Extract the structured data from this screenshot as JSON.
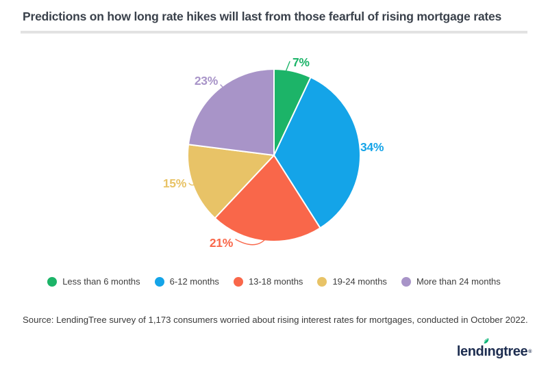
{
  "header": {
    "title": "Predictions on how long rate hikes will last from those fearful of rising mortgage rates"
  },
  "chart_data": {
    "type": "pie",
    "title": "Predictions on how long rate hikes will last from those fearful of rising mortgage rates",
    "categories": [
      "Less than 6 months",
      "6-12 months",
      "13-18 months",
      "19-24 months",
      "More than 24 months"
    ],
    "values": [
      7,
      34,
      21,
      15,
      23
    ],
    "unit": "%",
    "data_labels": [
      "7%",
      "34%",
      "21%",
      "15%",
      "23%"
    ],
    "colors": [
      "#1CB468",
      "#14A4E8",
      "#F9674A",
      "#E8C367",
      "#A894C8"
    ],
    "slice_separator_color": "#FFFFFF",
    "start_angle_deg": 0,
    "direction": "clockwise",
    "legend_position": "bottom"
  },
  "footer": {
    "source": "Source: LendingTree survey of 1,173 consumers worried about rising interest rates for mortgages, conducted in October 2022.",
    "logo": {
      "text": "lendingtree",
      "trademark": "®",
      "text_color": "#1D2D50",
      "leaf_color": "#00B272"
    }
  }
}
